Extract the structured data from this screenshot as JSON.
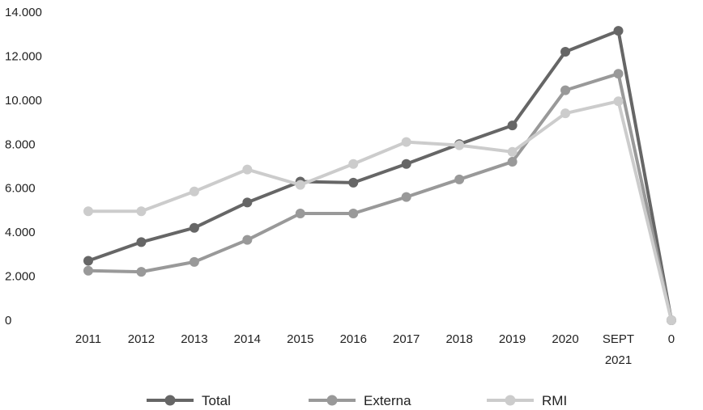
{
  "chart_data": {
    "type": "line",
    "title": "",
    "xlabel": "",
    "ylabel": "",
    "categories": [
      "2011",
      "2012",
      "2013",
      "2014",
      "2015",
      "2016",
      "2017",
      "2018",
      "2019",
      "2020",
      "SEPT 2021",
      "0"
    ],
    "ylim": [
      0,
      14000
    ],
    "y_ticks": [
      "0",
      "2.000",
      "4.000",
      "6.000",
      "8.000",
      "10.000",
      "12.000",
      "14.000"
    ],
    "y_tick_values": [
      0,
      2000,
      4000,
      6000,
      8000,
      10000,
      12000,
      14000
    ],
    "grid": false,
    "legend_position": "bottom",
    "series": [
      {
        "name": "Total",
        "color": "#666666",
        "values": [
          2700,
          3550,
          4200,
          5350,
          6300,
          6250,
          7100,
          8000,
          8850,
          12200,
          13150,
          0
        ]
      },
      {
        "name": "Externa",
        "color": "#999999",
        "values": [
          2250,
          2200,
          2650,
          3650,
          4850,
          4850,
          5600,
          6400,
          7200,
          10450,
          11200,
          0
        ]
      },
      {
        "name": "RMI",
        "color": "#cccccc",
        "values": [
          4950,
          4950,
          5850,
          6850,
          6150,
          7100,
          8100,
          7950,
          7650,
          9400,
          9950,
          0
        ]
      }
    ]
  }
}
